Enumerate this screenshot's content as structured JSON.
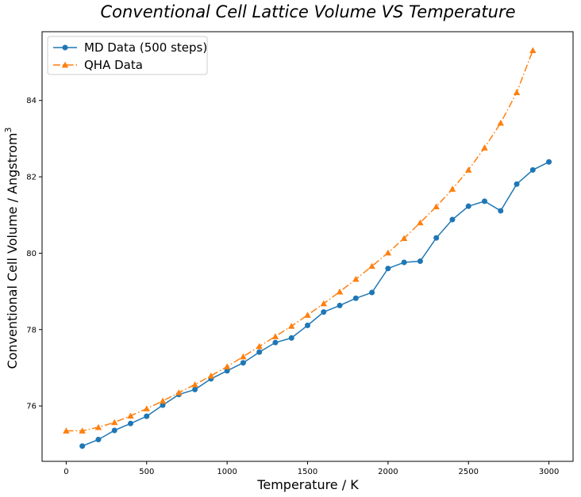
{
  "chart_data": {
    "type": "line",
    "title": "Conventional Cell Lattice Volume VS Temperature",
    "xlabel": "Temperature / K",
    "ylabel": "Conventional Cell Volume / Angstrom",
    "ylabel_superscript": "3",
    "xlim": [
      -150,
      3150
    ],
    "ylim": [
      74.55,
      85.8
    ],
    "xticks": [
      0,
      500,
      1000,
      1500,
      2000,
      2500,
      3000
    ],
    "yticks": [
      76,
      78,
      80,
      82,
      84
    ],
    "grid": false,
    "legend_position": "top-left",
    "series": [
      {
        "name": "MD Data (500 steps)",
        "color": "#1f77b4",
        "marker": "circle",
        "linestyle": "solid",
        "x": [
          100,
          200,
          300,
          400,
          500,
          600,
          700,
          800,
          900,
          1000,
          1100,
          1200,
          1300,
          1400,
          1500,
          1600,
          1700,
          1800,
          1900,
          2000,
          2100,
          2200,
          2300,
          2400,
          2500,
          2600,
          2700,
          2800,
          2900,
          3000
        ],
        "y": [
          74.95,
          75.12,
          75.36,
          75.54,
          75.73,
          76.02,
          76.3,
          76.43,
          76.71,
          76.92,
          77.13,
          77.41,
          77.66,
          77.78,
          78.11,
          78.46,
          78.63,
          78.82,
          78.97,
          79.6,
          79.76,
          79.79,
          80.4,
          80.88,
          81.23,
          81.36,
          81.11,
          81.81,
          82.18,
          82.39
        ]
      },
      {
        "name": "QHA Data",
        "color": "#ff7f0e",
        "marker": "triangle",
        "linestyle": "dashdot",
        "x": [
          0,
          100,
          200,
          300,
          400,
          500,
          600,
          700,
          800,
          900,
          1000,
          1100,
          1200,
          1300,
          1400,
          1500,
          1600,
          1700,
          1800,
          1900,
          2000,
          2100,
          2200,
          2300,
          2400,
          2500,
          2600,
          2700,
          2800,
          2900
        ],
        "y": [
          75.35,
          75.35,
          75.44,
          75.57,
          75.74,
          75.93,
          76.13,
          76.35,
          76.56,
          76.79,
          77.03,
          77.29,
          77.56,
          77.82,
          78.09,
          78.38,
          78.68,
          78.99,
          79.32,
          79.66,
          80.01,
          80.39,
          80.8,
          81.22,
          81.68,
          82.18,
          82.76,
          83.41,
          84.21,
          85.31
        ]
      }
    ]
  }
}
